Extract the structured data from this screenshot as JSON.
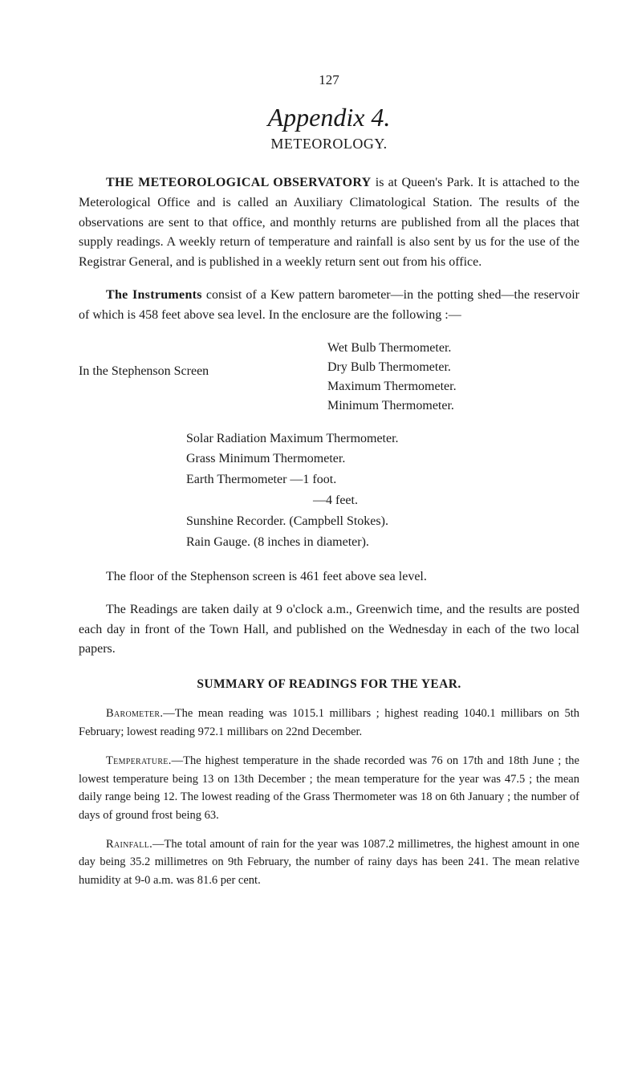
{
  "page_number": "127",
  "appendix_title": "Appendix 4.",
  "subtitle": "METEOROLOGY.",
  "para1": {
    "heading": "THE METEOROLOGICAL OBSERVATORY",
    "body": " is at Queen's Park. It is attached to the Meterological Office and is called an Auxiliary Climatological Station. The results of the observations are sent to that office, and monthly returns are published from all the places that supply readings. A weekly return of temperature and rainfall is also sent by us for the use of the Registrar General, and is published in a weekly return sent out from his office."
  },
  "para2": {
    "heading": "The Instruments",
    "body": " consist of a Kew pattern barometer—in the potting shed—the reservoir of which is 458 feet above sea level. In the enclosure are the following :—"
  },
  "stephenson": {
    "left": "In the Stephenson Screen",
    "r1": "Wet Bulb Thermometer.",
    "r2": "Dry Bulb Thermometer.",
    "r3": "Maximum Thermometer.",
    "r4": "Minimum Thermometer."
  },
  "center_list": {
    "l1": "Solar Radiation Maximum Thermometer.",
    "l2": "Grass Minimum Thermometer.",
    "l3": "Earth Thermometer  —1 foot.",
    "l3b": "—4 feet.",
    "l4": "Sunshine Recorder.   (Campbell Stokes).",
    "l5": "Rain Gauge.   (8 inches in diameter)."
  },
  "para3": "The floor of the Stephenson screen is 461 feet above sea level.",
  "para4": "The Readings are taken daily at 9 o'clock a.m., Greenwich time, and the results are posted each day in front of the Town Hall, and published on the Wednesday in each of the two local papers.",
  "summary_heading": "SUMMARY OF READINGS FOR THE YEAR.",
  "barometer": {
    "label": "Barometer.",
    "text": "—The mean reading was 1015.1 millibars ; highest reading 1040.1 milli­bars on 5th February; lowest reading 972.1 millibars on 22nd December."
  },
  "temperature": {
    "label": "Temperature.",
    "text": "—The highest temperature in the shade recorded was 76 on 17th and 18th June ; the lowest temperature being 13 on 13th December ; the mean temperature for the year was 47.5 ; the mean daily range being 12. The lowest reading of the Grass Thermometer was 18 on 6th January ; the number of days of ground frost being 63."
  },
  "rainfall": {
    "label": "Rainfall.",
    "text": "—The total amount of rain for the year was 1087.2 millimetres, the highest amount in one day being 35.2 millimetres on 9th February, the number of rainy days has been 241. The mean relative humidity at 9-0 a.m. was 81.6 per cent."
  }
}
